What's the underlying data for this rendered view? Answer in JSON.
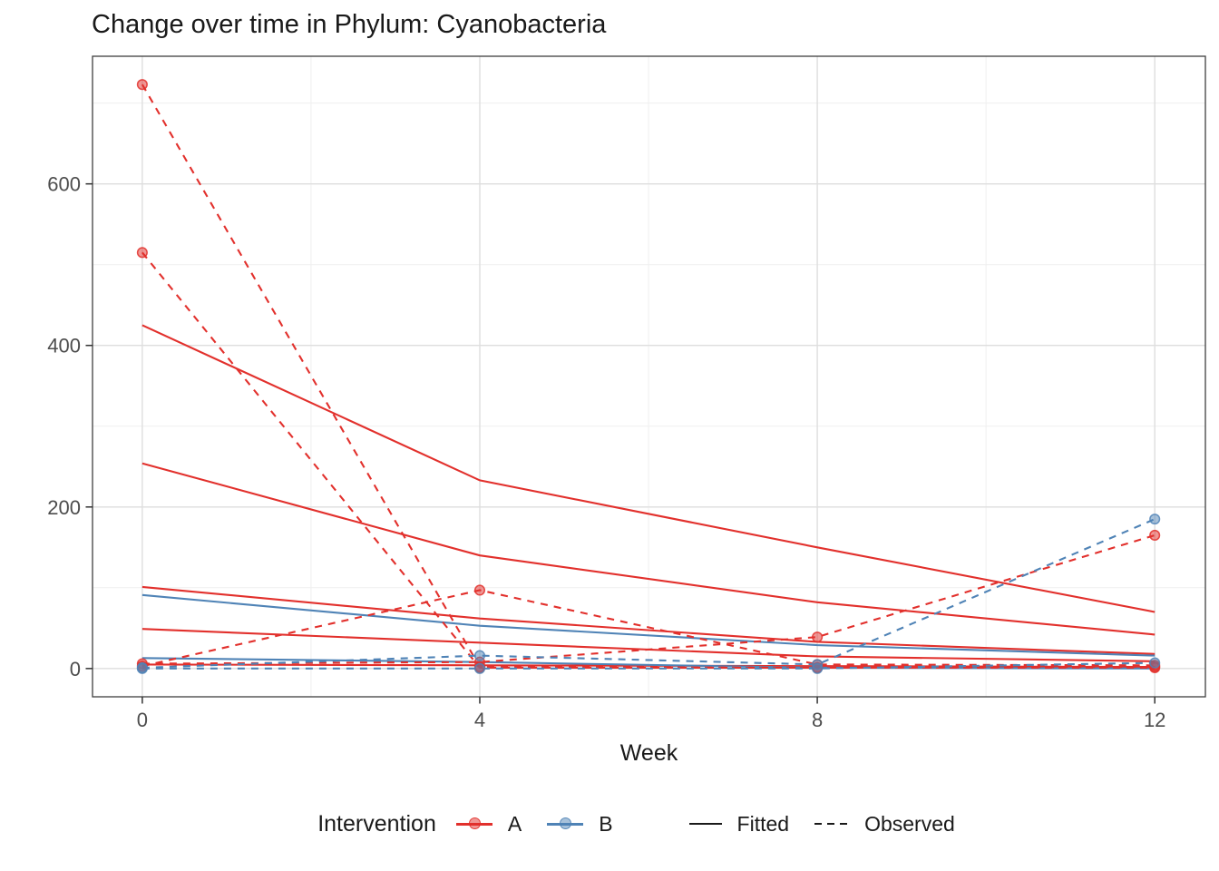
{
  "title": "Change over time in Phylum: Cyanobacteria",
  "x_axis": {
    "label": "Week",
    "tick_labels": [
      "0",
      "4",
      "8",
      "12"
    ],
    "tick_values": [
      0,
      4,
      8,
      12
    ],
    "minor_values": [
      2,
      6,
      10
    ],
    "range": [
      -0.59,
      12.6
    ]
  },
  "y_axis": {
    "label": "",
    "tick_labels": [
      "0",
      "200",
      "400",
      "600"
    ],
    "tick_values": [
      0,
      200,
      400,
      600
    ],
    "minor_values": [
      100,
      300,
      500,
      700
    ],
    "range": [
      -35,
      758
    ]
  },
  "legend": {
    "title": "Intervention",
    "groups": [
      {
        "label": "A",
        "color": "#E2302C"
      },
      {
        "label": "B",
        "color": "#4F83B6"
      }
    ],
    "linetypes": [
      {
        "label": "Fitted",
        "style": "solid"
      },
      {
        "label": "Observed",
        "style": "dashed"
      }
    ]
  },
  "colors": {
    "A": "#E2302C",
    "B": "#4F83B6",
    "grid_major": "#DEDEDE",
    "grid_minor": "#EFEFEF",
    "panel_border": "#3F3F3F",
    "tick_mark": "#333333",
    "tick_label": "#4D4D4D",
    "text": "#1a1a1a"
  },
  "chart_data": {
    "type": "line",
    "title": "Change over time in Phylum: Cyanobacteria",
    "xlabel": "Week",
    "ylabel": "",
    "x": [
      0,
      4,
      8,
      12
    ],
    "xlim": [
      -0.59,
      12.6
    ],
    "ylim": [
      -35,
      758
    ],
    "grid": true,
    "legend_position": "bottom",
    "series": [
      {
        "group": "A",
        "kind": "Fitted",
        "values": [
          425,
          233,
          150,
          70
        ]
      },
      {
        "group": "A",
        "kind": "Fitted",
        "values": [
          254,
          140,
          82,
          42
        ]
      },
      {
        "group": "A",
        "kind": "Fitted",
        "values": [
          101,
          62,
          33,
          18
        ]
      },
      {
        "group": "A",
        "kind": "Fitted",
        "values": [
          49,
          32,
          15,
          9
        ]
      },
      {
        "group": "A",
        "kind": "Fitted",
        "values": [
          5,
          4,
          3,
          2
        ]
      },
      {
        "group": "B",
        "kind": "Fitted",
        "values": [
          91,
          53,
          29,
          16
        ]
      },
      {
        "group": "B",
        "kind": "Fitted",
        "values": [
          13,
          8,
          1,
          0
        ]
      },
      {
        "group": "A",
        "kind": "Observed",
        "values": [
          723,
          2,
          1,
          1
        ]
      },
      {
        "group": "A",
        "kind": "Observed",
        "values": [
          515,
          1,
          1,
          2
        ]
      },
      {
        "group": "A",
        "kind": "Observed",
        "values": [
          3,
          97,
          5,
          4
        ]
      },
      {
        "group": "A",
        "kind": "Observed",
        "values": [
          6,
          8,
          39,
          165
        ]
      },
      {
        "group": "B",
        "kind": "Observed",
        "values": [
          1,
          16,
          5,
          185
        ]
      },
      {
        "group": "B",
        "kind": "Observed",
        "values": [
          0,
          0,
          0,
          7
        ]
      }
    ]
  }
}
